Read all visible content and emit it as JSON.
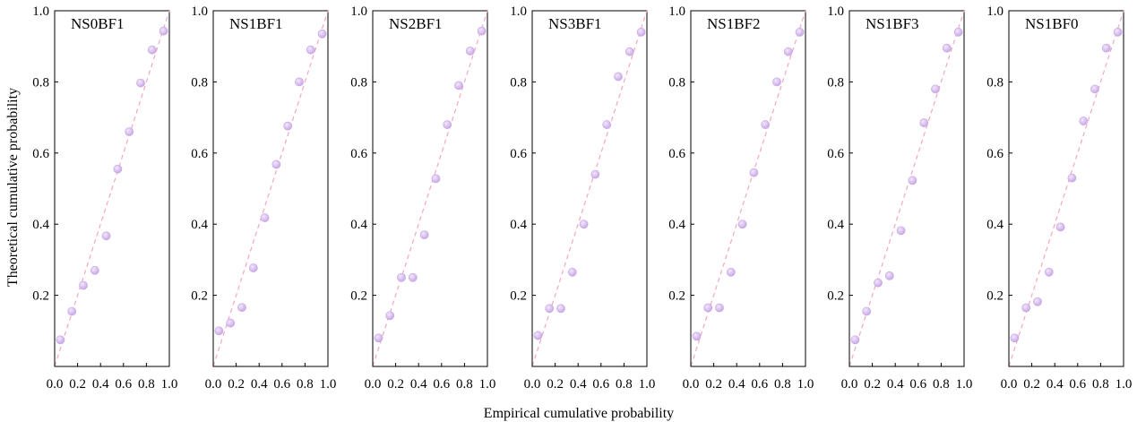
{
  "figure": {
    "ylabel": "Theoretical cumulative probability",
    "xlabel": "Empirical cumulative probability",
    "marker_color": "#c9a8e6",
    "marker_highlight": "#f2e8fb",
    "refline_color": "#f4a6c6"
  },
  "chart_data": [
    {
      "type": "scatter",
      "title": "NS0BF1",
      "xlim": [
        0,
        1
      ],
      "ylim": [
        0,
        1
      ],
      "xticks": [
        "0.0",
        "0.2",
        "0.4",
        "0.6",
        "0.8",
        "1.0"
      ],
      "yticks": [
        "0.2",
        "0.4",
        "0.6",
        "0.8",
        "1.0"
      ],
      "reference_line": [
        [
          0,
          0
        ],
        [
          1,
          1
        ]
      ],
      "series": [
        {
          "x": [
            0.05,
            0.15,
            0.25,
            0.35,
            0.45,
            0.55,
            0.65,
            0.75,
            0.85,
            0.95
          ],
          "y": [
            0.075,
            0.155,
            0.228,
            0.27,
            0.367,
            0.555,
            0.66,
            0.797,
            0.89,
            0.943
          ]
        }
      ]
    },
    {
      "type": "scatter",
      "title": "NS1BF1",
      "xlim": [
        0,
        1
      ],
      "ylim": [
        0,
        1
      ],
      "xticks": [
        "0.0",
        "0.2",
        "0.4",
        "0.6",
        "0.8",
        "1.0"
      ],
      "yticks": [
        "0.2",
        "0.4",
        "0.6",
        "0.8",
        "1.0"
      ],
      "reference_line": [
        [
          0,
          0
        ],
        [
          1,
          1
        ]
      ],
      "series": [
        {
          "x": [
            0.05,
            0.15,
            0.25,
            0.35,
            0.45,
            0.55,
            0.65,
            0.75,
            0.85,
            0.95
          ],
          "y": [
            0.1,
            0.122,
            0.166,
            0.277,
            0.418,
            0.568,
            0.676,
            0.8,
            0.89,
            0.935
          ]
        }
      ]
    },
    {
      "type": "scatter",
      "title": "NS2BF1",
      "xlim": [
        0,
        1
      ],
      "ylim": [
        0,
        1
      ],
      "xticks": [
        "0.0",
        "0.2",
        "0.4",
        "0.6",
        "0.8",
        "1.0"
      ],
      "yticks": [
        "0.2",
        "0.4",
        "0.6",
        "0.8",
        "1.0"
      ],
      "reference_line": [
        [
          0,
          0
        ],
        [
          1,
          1
        ]
      ],
      "series": [
        {
          "x": [
            0.05,
            0.15,
            0.25,
            0.35,
            0.45,
            0.55,
            0.65,
            0.75,
            0.85,
            0.95
          ],
          "y": [
            0.08,
            0.143,
            0.25,
            0.25,
            0.37,
            0.528,
            0.68,
            0.79,
            0.887,
            0.943
          ]
        }
      ]
    },
    {
      "type": "scatter",
      "title": "NS3BF1",
      "xlim": [
        0,
        1
      ],
      "ylim": [
        0,
        1
      ],
      "xticks": [
        "0.0",
        "0.2",
        "0.4",
        "0.6",
        "0.8",
        "1.0"
      ],
      "yticks": [
        "0.2",
        "0.4",
        "0.6",
        "0.8",
        "1.0"
      ],
      "reference_line": [
        [
          0,
          0
        ],
        [
          1,
          1
        ]
      ],
      "series": [
        {
          "x": [
            0.05,
            0.15,
            0.25,
            0.35,
            0.45,
            0.55,
            0.65,
            0.75,
            0.85,
            0.95
          ],
          "y": [
            0.087,
            0.163,
            0.163,
            0.265,
            0.4,
            0.54,
            0.68,
            0.815,
            0.885,
            0.94
          ]
        }
      ]
    },
    {
      "type": "scatter",
      "title": "NS1BF2",
      "xlim": [
        0,
        1
      ],
      "ylim": [
        0,
        1
      ],
      "xticks": [
        "0.0",
        "0.2",
        "0.4",
        "0.6",
        "0.8",
        "1.0"
      ],
      "yticks": [
        "0.2",
        "0.4",
        "0.6",
        "0.8",
        "1.0"
      ],
      "reference_line": [
        [
          0,
          0
        ],
        [
          1,
          1
        ]
      ],
      "series": [
        {
          "x": [
            0.05,
            0.15,
            0.25,
            0.35,
            0.45,
            0.55,
            0.65,
            0.75,
            0.85,
            0.95
          ],
          "y": [
            0.085,
            0.165,
            0.165,
            0.265,
            0.4,
            0.545,
            0.68,
            0.8,
            0.885,
            0.94
          ]
        }
      ]
    },
    {
      "type": "scatter",
      "title": "NS1BF3",
      "xlim": [
        0,
        1
      ],
      "ylim": [
        0,
        1
      ],
      "xticks": [
        "0.0",
        "0.2",
        "0.4",
        "0.6",
        "0.8",
        "1.0"
      ],
      "yticks": [
        "0.2",
        "0.4",
        "0.6",
        "0.8",
        "1.0"
      ],
      "reference_line": [
        [
          0,
          0
        ],
        [
          1,
          1
        ]
      ],
      "series": [
        {
          "x": [
            0.05,
            0.15,
            0.25,
            0.35,
            0.45,
            0.55,
            0.65,
            0.75,
            0.85,
            0.95
          ],
          "y": [
            0.075,
            0.155,
            0.235,
            0.255,
            0.382,
            0.523,
            0.685,
            0.78,
            0.895,
            0.94
          ]
        }
      ]
    },
    {
      "type": "scatter",
      "title": "NS1BF0",
      "xlim": [
        0,
        1
      ],
      "ylim": [
        0,
        1
      ],
      "xticks": [
        "0.0",
        "0.2",
        "0.4",
        "0.6",
        "0.8",
        "1.0"
      ],
      "yticks": [
        "0.2",
        "0.4",
        "0.6",
        "0.8",
        "1.0"
      ],
      "reference_line": [
        [
          0,
          0
        ],
        [
          1,
          1
        ]
      ],
      "series": [
        {
          "x": [
            0.05,
            0.15,
            0.25,
            0.35,
            0.45,
            0.55,
            0.65,
            0.75,
            0.85,
            0.95
          ],
          "y": [
            0.08,
            0.165,
            0.182,
            0.265,
            0.392,
            0.53,
            0.69,
            0.78,
            0.895,
            0.94
          ]
        }
      ]
    }
  ]
}
